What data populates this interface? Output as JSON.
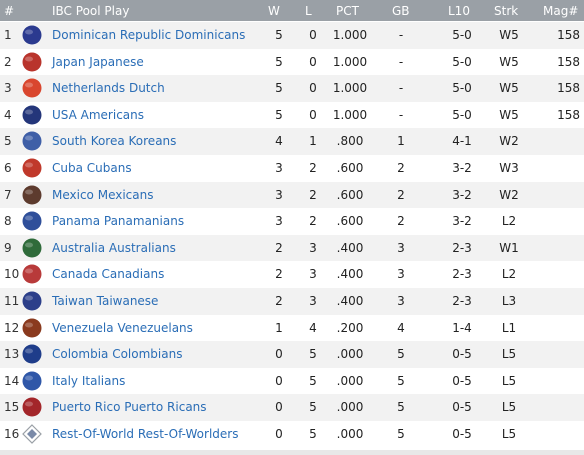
{
  "header": {
    "rank": "#",
    "title": "IBC Pool Play",
    "w": "W",
    "l": "L",
    "pct": "PCT",
    "gb": "GB",
    "l10": "L10",
    "strk": "Strk",
    "magic": "Mag#"
  },
  "rows": [
    {
      "rank": "1",
      "team": "Dominican Republic Dominicans",
      "w": "5",
      "l": "0",
      "pct": "1.000",
      "gb": "-",
      "l10": "5-0",
      "strk": "W5",
      "magic": "158",
      "color": "#2b3a8f"
    },
    {
      "rank": "2",
      "team": "Japan Japanese",
      "w": "5",
      "l": "0",
      "pct": "1.000",
      "gb": "-",
      "l10": "5-0",
      "strk": "W5",
      "magic": "158",
      "color": "#b9342c"
    },
    {
      "rank": "3",
      "team": "Netherlands Dutch",
      "w": "5",
      "l": "0",
      "pct": "1.000",
      "gb": "-",
      "l10": "5-0",
      "strk": "W5",
      "magic": "158",
      "color": "#d9462e"
    },
    {
      "rank": "4",
      "team": "USA Americans",
      "w": "5",
      "l": "0",
      "pct": "1.000",
      "gb": "-",
      "l10": "5-0",
      "strk": "W5",
      "magic": "158",
      "color": "#24367a"
    },
    {
      "rank": "5",
      "team": "South Korea Koreans",
      "w": "4",
      "l": "1",
      "pct": ".800",
      "gb": "1",
      "l10": "4-1",
      "strk": "W2",
      "magic": "",
      "color": "#3f5fa7"
    },
    {
      "rank": "6",
      "team": "Cuba Cubans",
      "w": "3",
      "l": "2",
      "pct": ".600",
      "gb": "2",
      "l10": "3-2",
      "strk": "W3",
      "magic": "",
      "color": "#c0392b"
    },
    {
      "rank": "7",
      "team": "Mexico Mexicans",
      "w": "3",
      "l": "2",
      "pct": ".600",
      "gb": "2",
      "l10": "3-2",
      "strk": "W2",
      "magic": "",
      "color": "#5d3b2e"
    },
    {
      "rank": "8",
      "team": "Panama Panamanians",
      "w": "3",
      "l": "2",
      "pct": ".600",
      "gb": "2",
      "l10": "3-2",
      "strk": "L2",
      "magic": "",
      "color": "#2f4f9a"
    },
    {
      "rank": "9",
      "team": "Australia Australians",
      "w": "2",
      "l": "3",
      "pct": ".400",
      "gb": "3",
      "l10": "2-3",
      "strk": "W1",
      "magic": "",
      "color": "#2f6b3a"
    },
    {
      "rank": "10",
      "team": "Canada Canadians",
      "w": "2",
      "l": "3",
      "pct": ".400",
      "gb": "3",
      "l10": "2-3",
      "strk": "L2",
      "magic": "",
      "color": "#b83a3a"
    },
    {
      "rank": "11",
      "team": "Taiwan Taiwanese",
      "w": "2",
      "l": "3",
      "pct": ".400",
      "gb": "3",
      "l10": "2-3",
      "strk": "L3",
      "magic": "",
      "color": "#2c3f8a"
    },
    {
      "rank": "12",
      "team": "Venezuela Venezuelans",
      "w": "1",
      "l": "4",
      "pct": ".200",
      "gb": "4",
      "l10": "1-4",
      "strk": "L1",
      "magic": "",
      "color": "#8a3a1e"
    },
    {
      "rank": "13",
      "team": "Colombia Colombians",
      "w": "0",
      "l": "5",
      "pct": ".000",
      "gb": "5",
      "l10": "0-5",
      "strk": "L5",
      "magic": "",
      "color": "#1f3d8a"
    },
    {
      "rank": "14",
      "team": "Italy Italians",
      "w": "0",
      "l": "5",
      "pct": ".000",
      "gb": "5",
      "l10": "0-5",
      "strk": "L5",
      "magic": "",
      "color": "#2f57a8"
    },
    {
      "rank": "15",
      "team": "Puerto Rico Puerto Ricans",
      "w": "0",
      "l": "5",
      "pct": ".000",
      "gb": "5",
      "l10": "0-5",
      "strk": "L5",
      "magic": "",
      "color": "#a3262a"
    },
    {
      "rank": "16",
      "team": "Rest-Of-World Rest-Of-Worlders",
      "w": "0",
      "l": "5",
      "pct": ".000",
      "gb": "5",
      "l10": "0-5",
      "strk": "L5",
      "magic": "",
      "color": "#7a8aa8",
      "logo_style": "diamond"
    }
  ]
}
